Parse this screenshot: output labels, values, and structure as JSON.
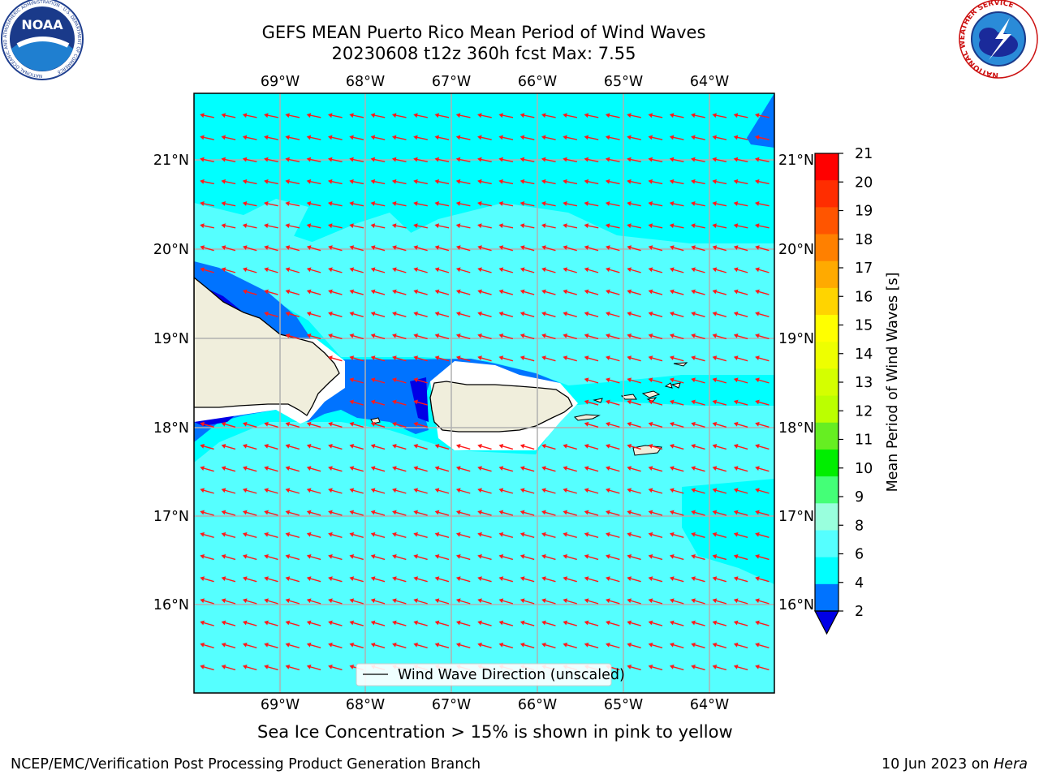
{
  "header": {
    "title_line1": "GEFS MEAN Puerto Rico Mean Period of Wind Waves",
    "title_line2": "20230608 t12z 360h fcst   Max: 7.55"
  },
  "logos": {
    "left": "noara-logo",
    "right": "national-weather-service-logo",
    "left_text": "NOAA",
    "left_ring_text": "NATIONAL OCEANIC AND ATMOSPHERIC ADMINISTRATION · U.S. DEPARTMENT OF COMMERCE",
    "right_ring_text": "NATIONAL WEATHER SERVICE"
  },
  "map": {
    "lon_labels": [
      "69°W",
      "68°W",
      "67°W",
      "66°W",
      "65°W",
      "64°W"
    ],
    "lat_labels": [
      "21°N",
      "20°N",
      "19°N",
      "18°N",
      "17°N",
      "16°N"
    ],
    "legend_label": "Wind Wave Direction (unscaled)",
    "colors": {
      "ocean_6_8": "#55ffff",
      "ocean_4_6": "#00ffff",
      "band_2_4": "#0073ff",
      "band_lt_2": "#0000e6",
      "land": "#f0eedc",
      "arrow": "#ff1a1a",
      "grid": "#b0b0b0"
    }
  },
  "colorbar": {
    "label": "Mean Period of Wind Waves [s]",
    "ticks": [
      "21",
      "20",
      "19",
      "18",
      "17",
      "16",
      "15",
      "14",
      "13",
      "12",
      "11",
      "10",
      "9",
      "8",
      "6",
      "4",
      "2"
    ],
    "colors_top_to_bottom": [
      "#ff0000",
      "#ff2d00",
      "#ff5500",
      "#ff8000",
      "#ffaa00",
      "#ffd400",
      "#ffff00",
      "#eeff00",
      "#d4ff00",
      "#bbff00",
      "#66ee22",
      "#00ee00",
      "#44ff77",
      "#99ffdd",
      "#55ffff",
      "#00ffff",
      "#0073ff"
    ],
    "under_color": "#0000e6"
  },
  "caption": "Sea Ice Concentration > 15% is shown in pink to yellow",
  "footer": {
    "left": "NCEP/EMC/Verification Post Processing Product Generation Branch",
    "right_date": "10 Jun 2023 on ",
    "right_host": "Hera"
  }
}
